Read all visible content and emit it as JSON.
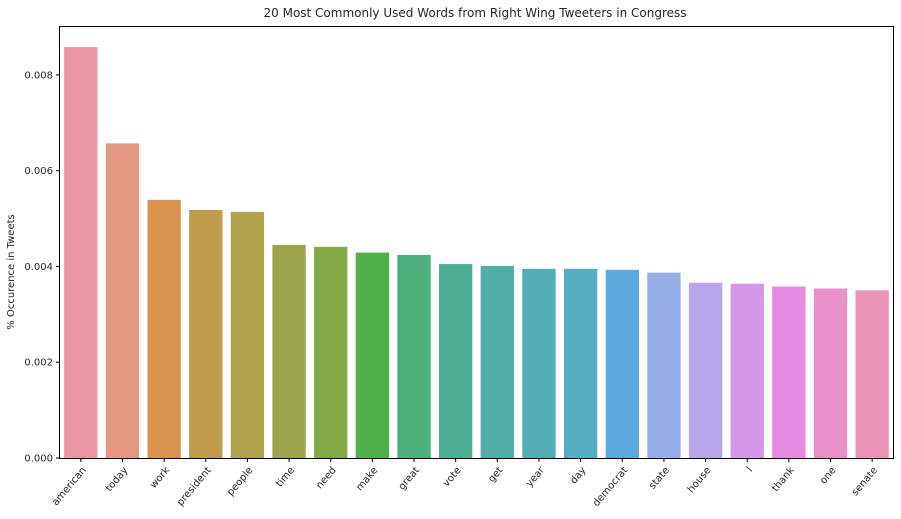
{
  "chart_data": {
    "type": "bar",
    "title": "20 Most Commonly Used Words from Right Wing Tweeters in Congress",
    "xlabel": "",
    "ylabel": "% Occurence in Tweets",
    "categories": [
      "american",
      "today",
      "work",
      "president",
      "people",
      "time",
      "need",
      "make",
      "great",
      "vote",
      "get",
      "year",
      "day",
      "democrat",
      "state",
      "house",
      "l",
      "thank",
      "one",
      "senate"
    ],
    "values": [
      0.00858,
      0.00657,
      0.00539,
      0.00518,
      0.00514,
      0.00445,
      0.00441,
      0.00429,
      0.00424,
      0.00405,
      0.00401,
      0.00395,
      0.00395,
      0.00393,
      0.00387,
      0.00366,
      0.00364,
      0.00358,
      0.00354,
      0.0035
    ],
    "ylim": [
      0,
      0.009
    ],
    "yticks": [
      0.0,
      0.002,
      0.004,
      0.006,
      0.008
    ],
    "ytick_labels": [
      "0.000",
      "0.002",
      "0.004",
      "0.006",
      "0.008"
    ],
    "grid": false,
    "legend": "none",
    "colors": [
      "#ea96a3",
      "#e69781",
      "#d8944f",
      "#bf9c4b",
      "#b1a34e",
      "#9ca44b",
      "#84aa46",
      "#4fb04c",
      "#4db07c",
      "#4faf95",
      "#51aea6",
      "#53adb5",
      "#55adc3",
      "#5aa8dc",
      "#96aee8",
      "#b8a6ec",
      "#d596e7",
      "#e48ae0",
      "#e990c9",
      "#ea93b6"
    ]
  }
}
